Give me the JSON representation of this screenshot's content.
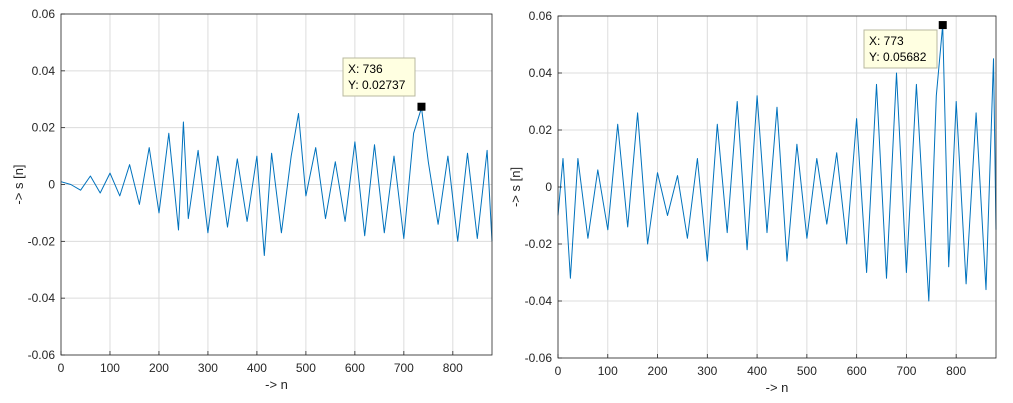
{
  "colors": {
    "line": "#0072bd",
    "grid": "#dcdcdc",
    "axis": "#262626",
    "datatip_bg": "#ffffe1",
    "datatip_border": "#b9b9a0",
    "marker": "#000000"
  },
  "chart_data": [
    {
      "type": "line",
      "xlabel": "-> n",
      "ylabel": "-> s [n]",
      "xlim": [
        0,
        880
      ],
      "ylim": [
        -0.06,
        0.06
      ],
      "xticks": [
        0,
        100,
        200,
        300,
        400,
        500,
        600,
        700,
        800
      ],
      "yticks": [
        -0.06,
        -0.04,
        -0.02,
        0,
        0.02,
        0.04,
        0.06
      ],
      "ytick_labels": [
        "-0.06",
        "-0.04",
        "-0.02",
        "0",
        "0.02",
        "0.04",
        "0.06"
      ],
      "grid": true,
      "series": [
        {
          "x": [
            0,
            20,
            40,
            60,
            80,
            100,
            120,
            140,
            160,
            180,
            200,
            220,
            240,
            250,
            260,
            280,
            300,
            320,
            340,
            360,
            380,
            400,
            415,
            430,
            450,
            470,
            485,
            500,
            520,
            540,
            560,
            580,
            600,
            620,
            640,
            660,
            680,
            700,
            720,
            736,
            750,
            770,
            790,
            810,
            830,
            850,
            870,
            880
          ],
          "y": [
            0.001,
            0.0,
            -0.002,
            0.003,
            -0.003,
            0.004,
            -0.004,
            0.007,
            -0.007,
            0.013,
            -0.01,
            0.018,
            -0.016,
            0.022,
            -0.012,
            0.012,
            -0.017,
            0.01,
            -0.015,
            0.009,
            -0.013,
            0.01,
            -0.025,
            0.011,
            -0.017,
            0.01,
            0.025,
            -0.004,
            0.013,
            -0.012,
            0.008,
            -0.013,
            0.015,
            -0.018,
            0.014,
            -0.017,
            0.01,
            -0.019,
            0.018,
            0.027,
            0.008,
            -0.014,
            0.01,
            -0.02,
            0.011,
            -0.019,
            0.012,
            -0.02
          ]
        }
      ],
      "datatip": {
        "x": 736,
        "y": 0.02737,
        "x_text": "X: 736",
        "y_text": "Y: 0.02737"
      }
    },
    {
      "type": "line",
      "xlabel": "-> n",
      "ylabel": "-> s [n]",
      "xlim": [
        0,
        880
      ],
      "ylim": [
        -0.06,
        0.06
      ],
      "xticks": [
        0,
        100,
        200,
        300,
        400,
        500,
        600,
        700,
        800
      ],
      "yticks": [
        -0.06,
        -0.04,
        -0.02,
        0,
        0.02,
        0.04,
        0.06
      ],
      "ytick_labels": [
        "-0.06",
        "-0.04",
        "-0.02",
        "0",
        "0.02",
        "0.04",
        "0.06"
      ],
      "grid": true,
      "series": [
        {
          "x": [
            0,
            10,
            25,
            40,
            60,
            80,
            100,
            120,
            140,
            160,
            180,
            200,
            220,
            240,
            260,
            280,
            300,
            320,
            340,
            360,
            380,
            400,
            420,
            440,
            460,
            480,
            500,
            520,
            540,
            560,
            580,
            600,
            620,
            640,
            660,
            680,
            700,
            720,
            745,
            760,
            773,
            785,
            800,
            820,
            840,
            860,
            875,
            880
          ],
          "y": [
            -0.01,
            0.01,
            -0.032,
            0.01,
            -0.018,
            0.006,
            -0.015,
            0.022,
            -0.014,
            0.026,
            -0.02,
            0.005,
            -0.01,
            0.004,
            -0.018,
            0.01,
            -0.026,
            0.022,
            -0.016,
            0.03,
            -0.022,
            0.032,
            -0.016,
            0.028,
            -0.026,
            0.015,
            -0.018,
            0.01,
            -0.013,
            0.012,
            -0.02,
            0.024,
            -0.03,
            0.036,
            -0.032,
            0.04,
            -0.03,
            0.036,
            -0.04,
            0.032,
            0.05682,
            -0.028,
            0.03,
            -0.034,
            0.026,
            -0.036,
            0.045,
            -0.015
          ]
        }
      ],
      "datatip": {
        "x": 773,
        "y": 0.05682,
        "x_text": "X: 773",
        "y_text": "Y: 0.05682"
      }
    }
  ]
}
